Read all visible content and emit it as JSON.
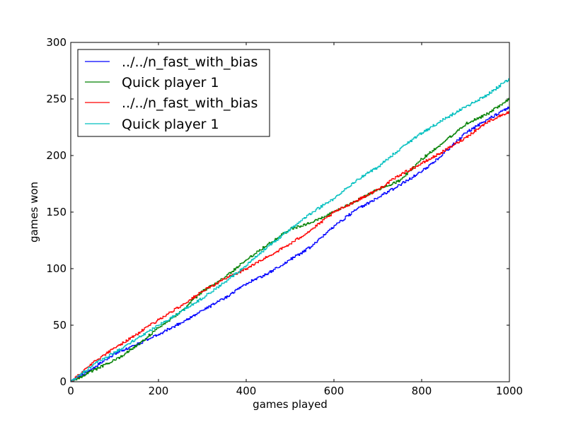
{
  "chart_data": {
    "type": "line",
    "title": "",
    "xlabel": "games played",
    "ylabel": "games won",
    "xlim": [
      0,
      1000
    ],
    "ylim": [
      0,
      300
    ],
    "xticks": [
      0,
      200,
      400,
      600,
      800,
      1000
    ],
    "yticks": [
      0,
      50,
      100,
      150,
      200,
      250,
      300
    ],
    "grid": false,
    "legend_position": "top-left",
    "series": [
      {
        "name": "../../n_fast_with_bias",
        "color": "#0000ff",
        "x": [
          0,
          50,
          100,
          150,
          200,
          250,
          300,
          350,
          400,
          450,
          500,
          550,
          600,
          650,
          700,
          750,
          800,
          850,
          900,
          950,
          1000
        ],
        "y": [
          0,
          12,
          25,
          33,
          42,
          52,
          63,
          74,
          87,
          96,
          108,
          120,
          138,
          152,
          163,
          174,
          186,
          202,
          220,
          232,
          243
        ]
      },
      {
        "name": "Quick player 1",
        "color": "#008000",
        "x": [
          0,
          50,
          100,
          150,
          200,
          250,
          300,
          350,
          400,
          450,
          500,
          550,
          600,
          650,
          700,
          750,
          800,
          850,
          900,
          950,
          1000
        ],
        "y": [
          0,
          10,
          19,
          32,
          48,
          62,
          80,
          92,
          108,
          122,
          135,
          141,
          150,
          160,
          170,
          178,
          197,
          212,
          228,
          237,
          250
        ]
      },
      {
        "name": "../../n_fast_with_bias",
        "color": "#ff0000",
        "x": [
          0,
          50,
          100,
          150,
          200,
          250,
          300,
          350,
          400,
          450,
          500,
          550,
          600,
          650,
          700,
          750,
          800,
          850,
          900,
          950,
          1000
        ],
        "y": [
          0,
          17,
          30,
          42,
          55,
          67,
          80,
          91,
          100,
          111,
          122,
          135,
          150,
          160,
          170,
          183,
          193,
          204,
          216,
          230,
          239
        ]
      },
      {
        "name": "Quick player 1",
        "color": "#00bfbf",
        "x": [
          0,
          50,
          100,
          150,
          200,
          250,
          300,
          350,
          400,
          450,
          500,
          550,
          600,
          650,
          700,
          750,
          800,
          850,
          900,
          950,
          1000
        ],
        "y": [
          0,
          15,
          26,
          38,
          50,
          62,
          74,
          88,
          103,
          120,
          135,
          150,
          162,
          178,
          190,
          206,
          220,
          232,
          243,
          254,
          268
        ]
      }
    ]
  }
}
